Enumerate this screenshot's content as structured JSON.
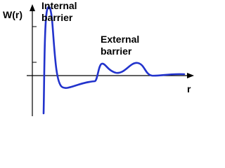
{
  "axes": {
    "y_label": "W(r)",
    "x_label": "r"
  },
  "annotations": [
    {
      "lines": [
        "Internal",
        "barrier"
      ]
    },
    {
      "lines": [
        "External",
        "barrier"
      ]
    }
  ]
}
